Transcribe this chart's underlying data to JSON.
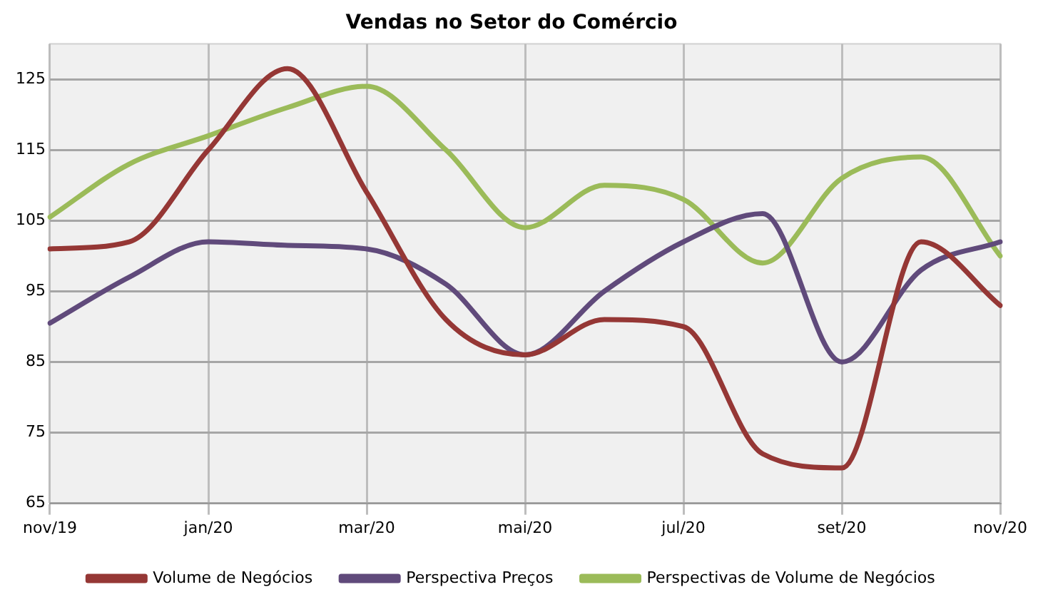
{
  "chart_data": {
    "type": "line",
    "title": "Vendas no Setor do Comércio",
    "categories": [
      "nov/19",
      null,
      "jan/20",
      null,
      "mar/20",
      null,
      "mai/20",
      null,
      "jul/20",
      null,
      "set/20",
      null,
      "nov/20"
    ],
    "series": [
      {
        "name": "Volume de Negócios",
        "color": "#953735",
        "values": [
          101,
          102,
          115,
          126.5,
          109,
          91,
          86,
          91,
          90,
          72,
          70,
          102,
          93
        ]
      },
      {
        "name": "Perspectiva Preços",
        "color": "#604a7b",
        "values": [
          90.5,
          97,
          102,
          101.5,
          101,
          96,
          86,
          95,
          102,
          106,
          85,
          98,
          102
        ]
      },
      {
        "name": "Perspectivas de Volume de Negócios",
        "color": "#9bbb59",
        "values": [
          105.5,
          113,
          117,
          121,
          124,
          115,
          104,
          110,
          108,
          99,
          111,
          114,
          100
        ]
      }
    ],
    "ylim": [
      65,
      130
    ],
    "yticks": [
      65,
      75,
      85,
      95,
      105,
      115,
      125
    ],
    "grid": true,
    "legend": "bottom",
    "marker": "none",
    "line_style": "solid"
  }
}
